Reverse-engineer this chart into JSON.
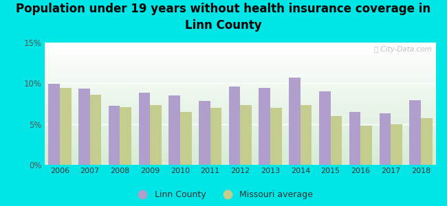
{
  "title": "Population under 19 years without health insurance coverage in\nLinn County",
  "years": [
    2006,
    2007,
    2008,
    2009,
    2010,
    2011,
    2012,
    2013,
    2014,
    2015,
    2016,
    2017,
    2018
  ],
  "linn_county": [
    9.9,
    9.3,
    7.2,
    8.8,
    8.5,
    7.8,
    9.6,
    9.4,
    10.7,
    9.0,
    6.5,
    6.3,
    7.9
  ],
  "missouri_avg": [
    9.4,
    8.6,
    7.1,
    7.3,
    6.5,
    7.0,
    7.3,
    7.0,
    7.3,
    6.0,
    4.8,
    5.0,
    5.7
  ],
  "linn_color": "#b09fcc",
  "mo_color": "#c5cd8e",
  "bg_outer": "#00e5e5",
  "ylim": [
    0,
    15
  ],
  "yticks": [
    0,
    5,
    10,
    15
  ],
  "ytick_labels": [
    "0%",
    "5%",
    "10%",
    "15%"
  ],
  "title_fontsize": 12,
  "legend_labels": [
    "Linn County",
    "Missouri average"
  ],
  "watermark": "City-Data.com"
}
